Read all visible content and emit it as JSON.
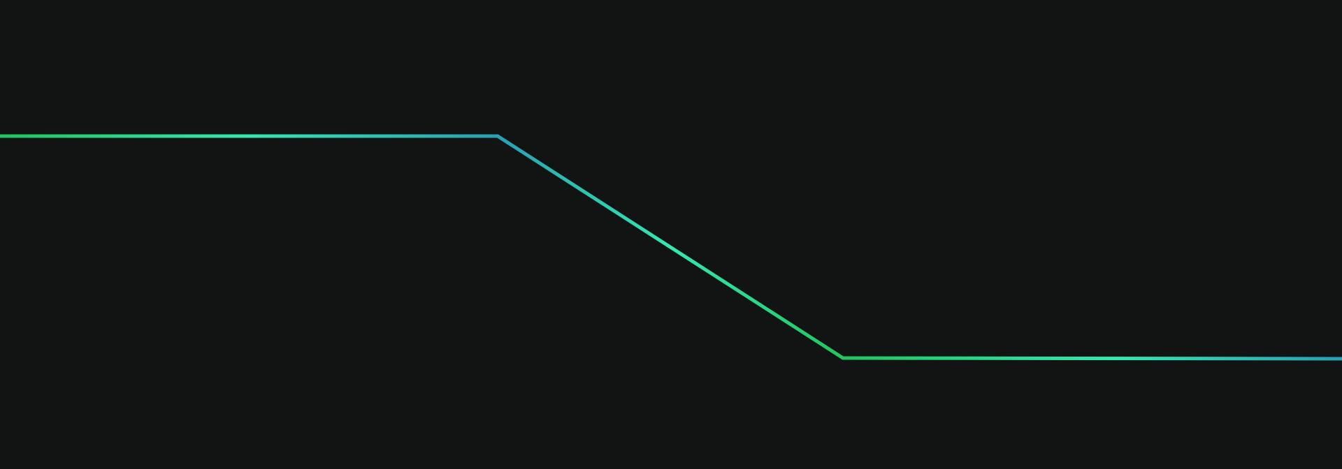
{
  "background": {
    "color": "#121414"
  },
  "trace": {
    "segments": [
      {
        "name": "upper-flat-segment",
        "gradient": [
          "#22c55e",
          "#34e8b0",
          "#2a9fb5"
        ]
      },
      {
        "name": "diagonal-descent-segment",
        "gradient": [
          "#2a9fb5",
          "#34e8b0",
          "#22c55e"
        ]
      },
      {
        "name": "lower-flat-segment",
        "gradient": [
          "#22c55e",
          "#34e8b0",
          "#2a9fb5"
        ]
      }
    ],
    "palette": {
      "green": "#22c55e",
      "mint": "#34e8b0",
      "teal": "#2a9fb5"
    }
  }
}
